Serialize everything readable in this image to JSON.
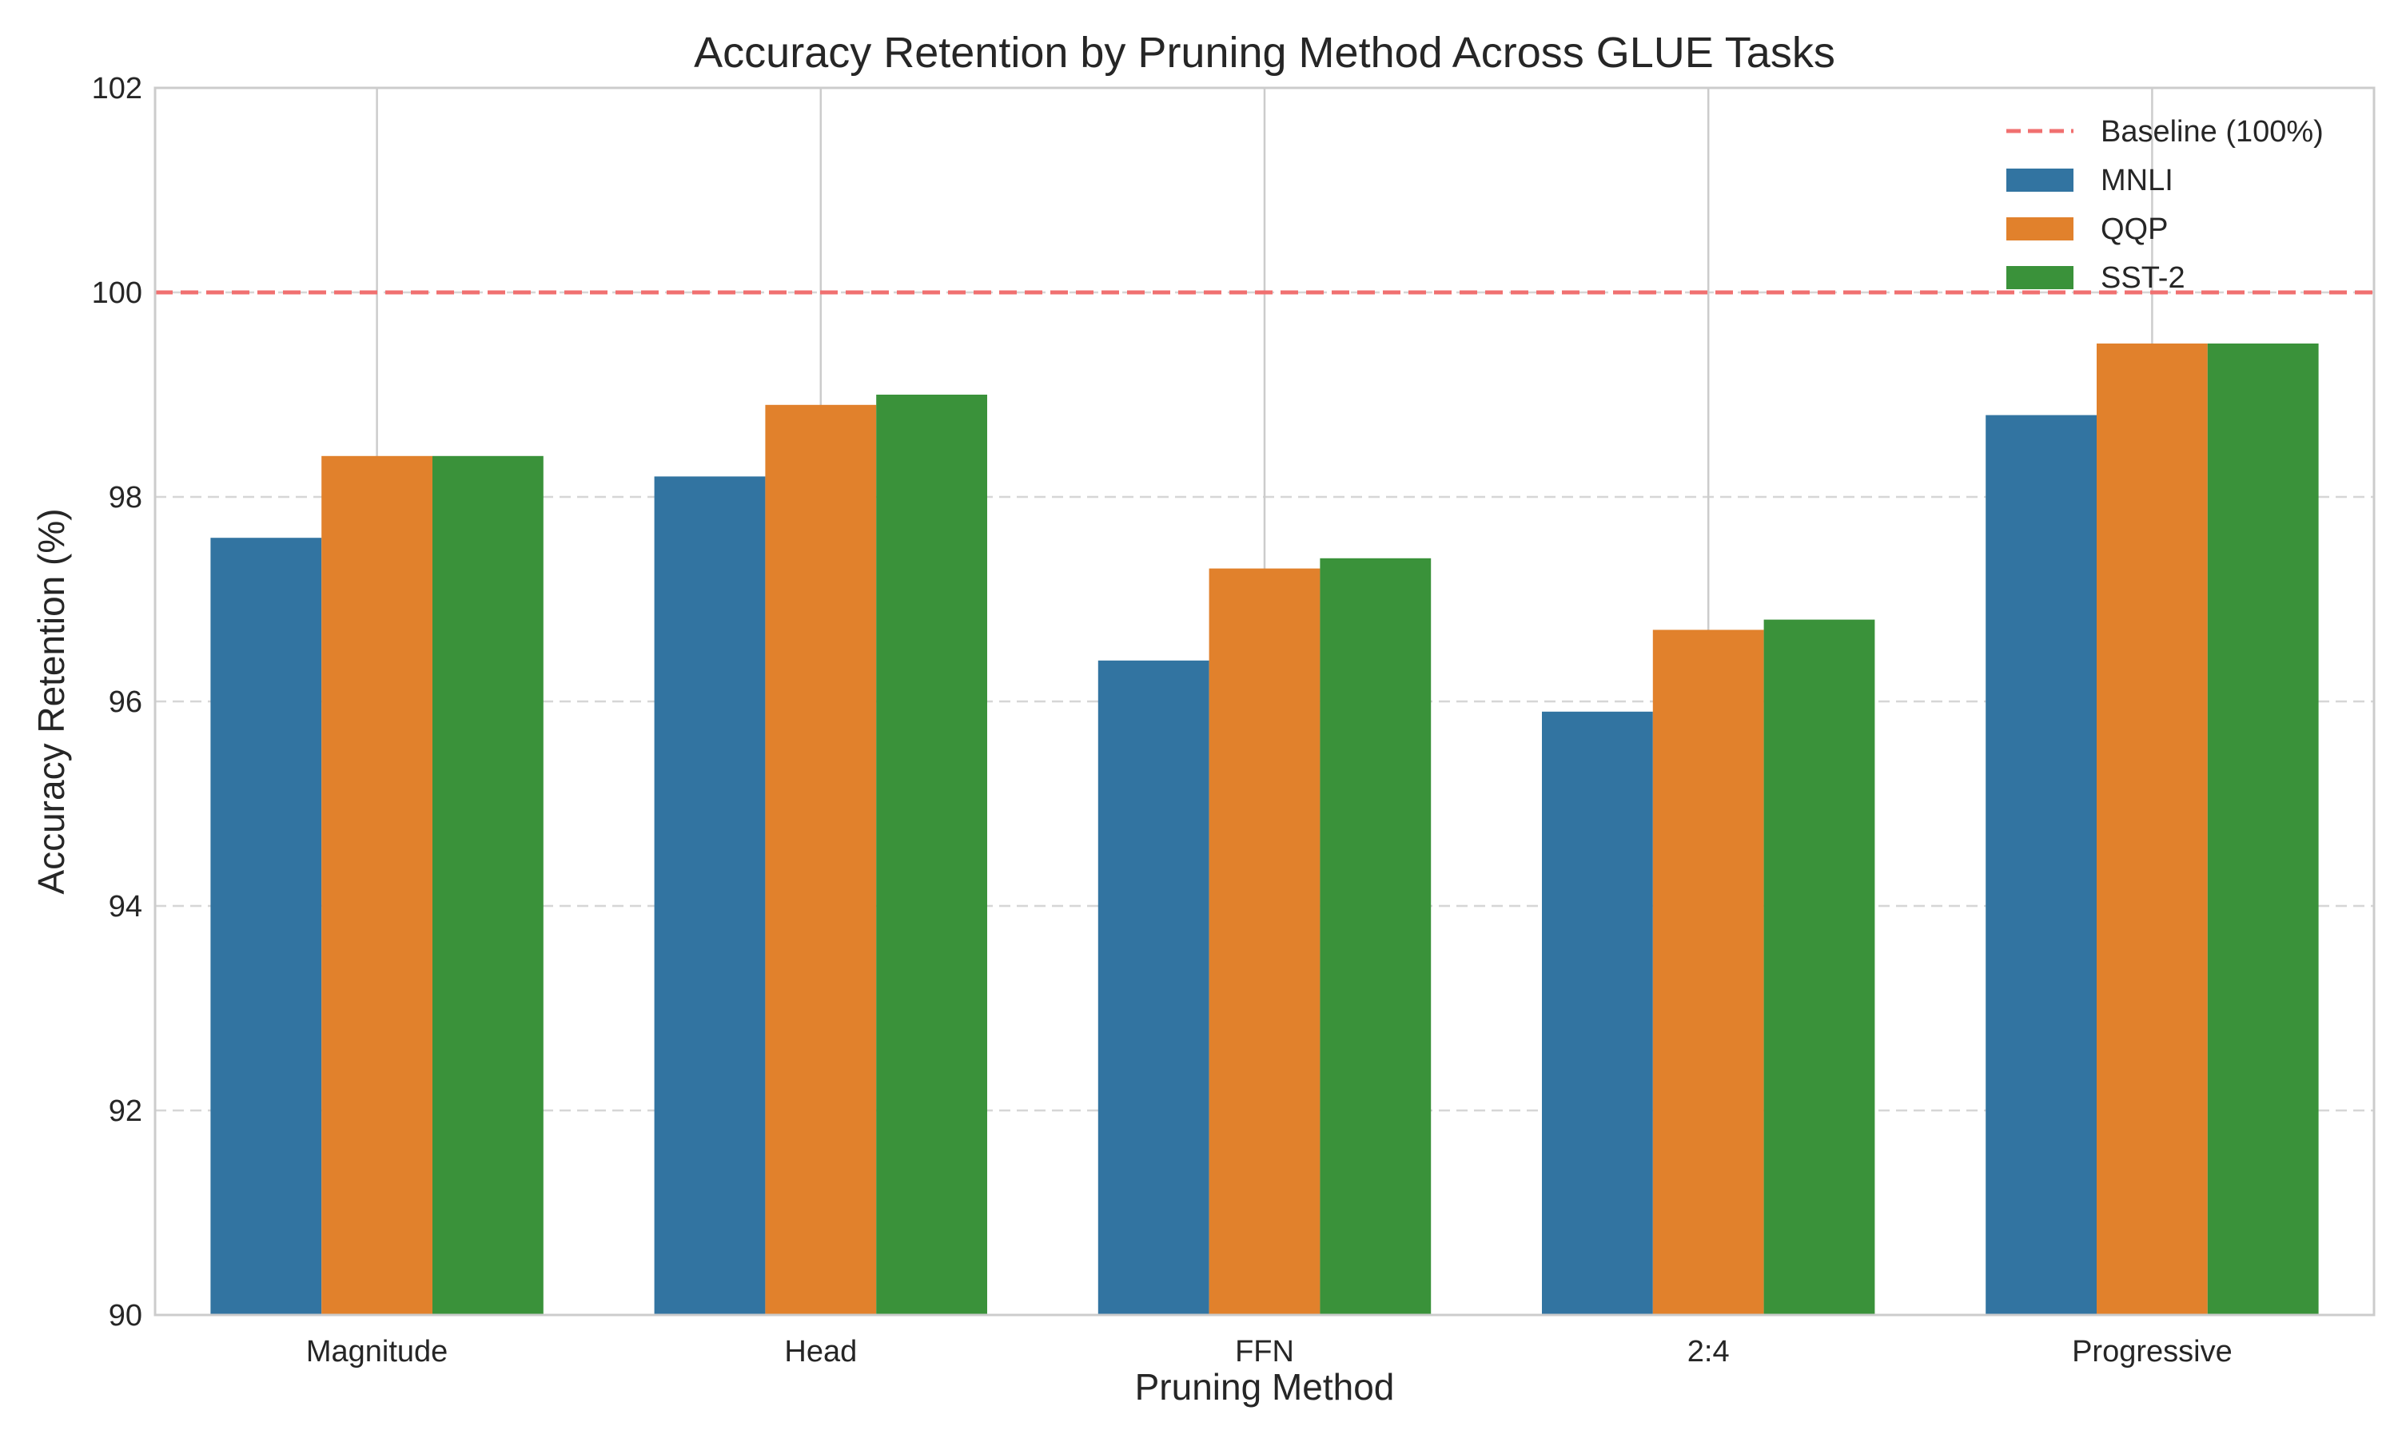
{
  "chart_data": {
    "type": "bar",
    "title": "Accuracy Retention by Pruning Method Across GLUE Tasks",
    "xlabel": "Pruning Method",
    "ylabel": "Accuracy Retention (%)",
    "categories": [
      "Magnitude",
      "Head",
      "FFN",
      "2:4",
      "Progressive"
    ],
    "series": [
      {
        "name": "MNLI",
        "color": "#3274a1",
        "values": [
          97.6,
          98.2,
          96.4,
          95.9,
          98.8
        ]
      },
      {
        "name": "QQP",
        "color": "#e1812c",
        "values": [
          98.4,
          98.9,
          97.3,
          96.7,
          99.5
        ]
      },
      {
        "name": "SST-2",
        "color": "#3a923a",
        "values": [
          98.4,
          99.0,
          97.4,
          96.8,
          99.5
        ]
      }
    ],
    "ylim": [
      90,
      102
    ],
    "yticks": [
      90,
      92,
      94,
      96,
      98,
      100,
      102
    ],
    "baseline": {
      "name": "Baseline (100%)",
      "value": 100,
      "color": "#f07070",
      "style": "dashed"
    },
    "grid": {
      "y": "dashed",
      "x": "solid"
    },
    "legend_position": "top-right"
  }
}
